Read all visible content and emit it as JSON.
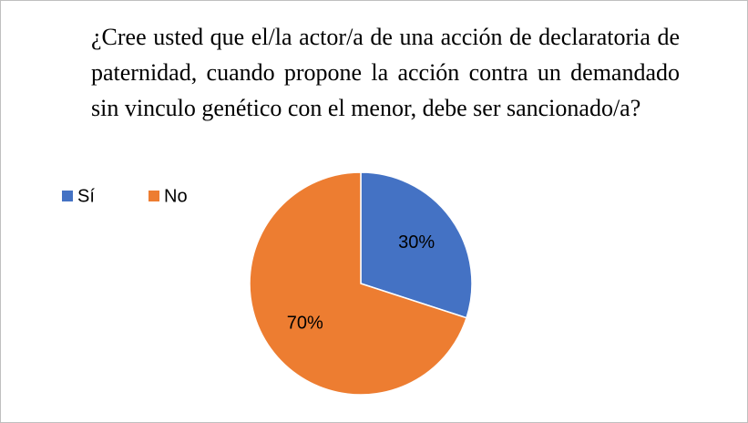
{
  "chart_data": {
    "type": "pie",
    "title": "¿Cree usted que el/la actor/a de una acción de declaratoria de paternidad, cuando propone la acción contra un demandado sin vinculo genético con el menor, debe ser sancionado/a?",
    "categories": [
      "Sí",
      "No"
    ],
    "values": [
      30,
      70
    ],
    "value_labels": [
      "30%",
      "70%"
    ],
    "colors": [
      "#4472c4",
      "#ed7d31"
    ],
    "legend": "left"
  }
}
